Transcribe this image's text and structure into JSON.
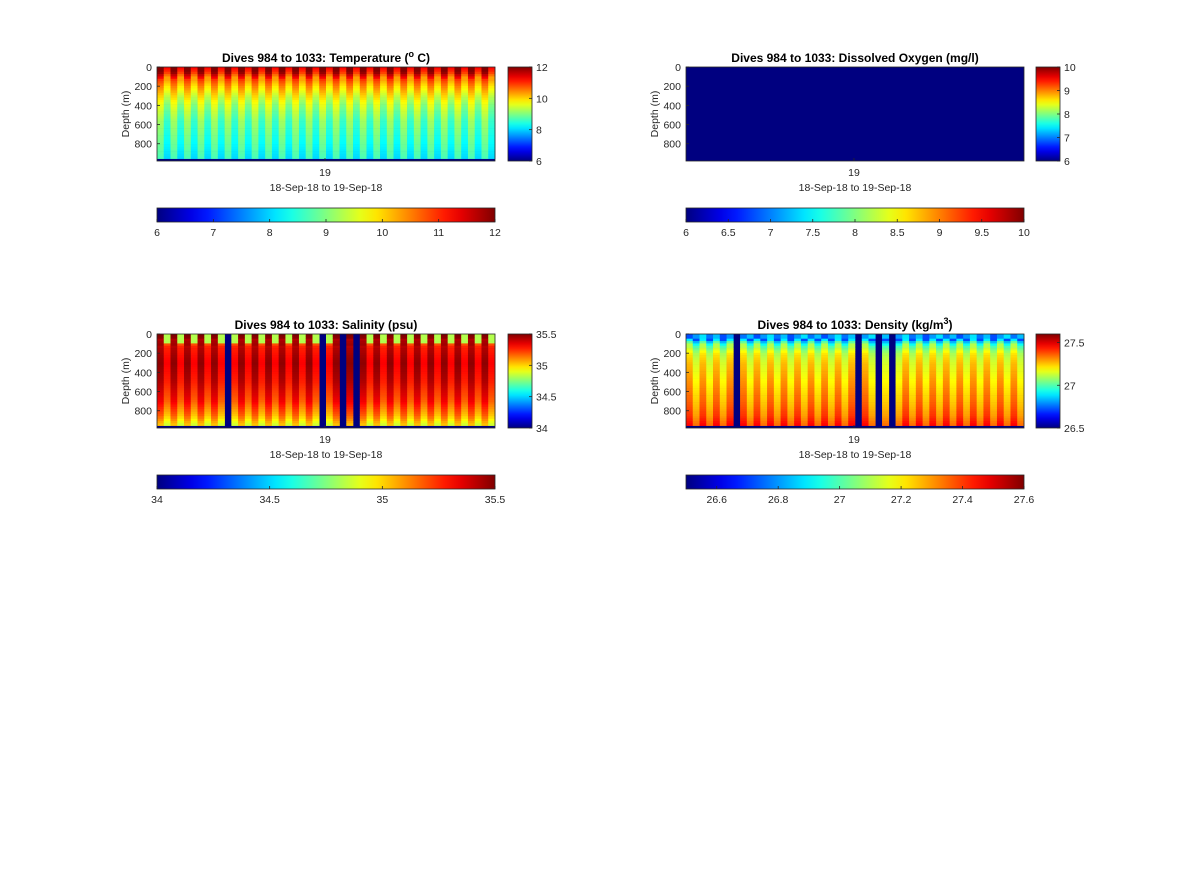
{
  "figure": {
    "colormap": "jet",
    "colors": {
      "background": "#ffffff",
      "missing_data": "#000080",
      "axes": "#262626"
    }
  },
  "chart_data": [
    {
      "type": "heatmap",
      "title": "Dives 984 to 1033: Temperature (",
      "title_sup": "o",
      "title_suffix": " C)",
      "ylabel": "Depth (m)",
      "xlabel": "18-Sep-18 to 19-Sep-18",
      "x_tick_labels": [
        "19"
      ],
      "y_ticks": [
        0,
        200,
        400,
        600,
        800
      ],
      "y_tick_labels": [
        "0",
        "200",
        "400",
        "600",
        "800"
      ],
      "ylim": [
        0,
        980
      ],
      "y_reversed": true,
      "dives": [
        984,
        1033
      ],
      "clim": [
        6,
        12
      ],
      "colorbar_ticks": [
        6,
        8,
        10,
        12
      ],
      "colorbar_tick_labels": [
        "6",
        "8",
        "10",
        "12"
      ],
      "h_colorbar_ticks": [
        6,
        7,
        8,
        9,
        10,
        11,
        12
      ],
      "h_colorbar_tick_labels": [
        "6",
        "7",
        "8",
        "9",
        "10",
        "11",
        "12"
      ],
      "profile": [
        [
          0,
          11.8
        ],
        [
          50,
          11.5
        ],
        [
          120,
          10.7
        ],
        [
          200,
          10.2
        ],
        [
          300,
          9.7
        ],
        [
          400,
          9.3
        ],
        [
          550,
          8.9
        ],
        [
          700,
          8.7
        ],
        [
          850,
          8.5
        ],
        [
          980,
          8.3
        ]
      ],
      "gap_dives": []
    },
    {
      "type": "heatmap",
      "title": "Dives 984 to 1033: Dissolved Oxygen (mg/l)",
      "title_sup": "",
      "title_suffix": "",
      "ylabel": "Depth (m)",
      "xlabel": "18-Sep-18 to 19-Sep-18",
      "x_tick_labels": [
        "19"
      ],
      "y_ticks": [
        0,
        200,
        400,
        600,
        800
      ],
      "y_tick_labels": [
        "0",
        "200",
        "400",
        "600",
        "800"
      ],
      "ylim": [
        0,
        980
      ],
      "y_reversed": true,
      "dives": [
        984,
        1033
      ],
      "clim": [
        6,
        10
      ],
      "colorbar_ticks": [
        6,
        7,
        8,
        9,
        10
      ],
      "colorbar_tick_labels": [
        "6",
        "7",
        "8",
        "9",
        "10"
      ],
      "h_colorbar_ticks": [
        6,
        6.5,
        7,
        7.5,
        8,
        8.5,
        9,
        9.5,
        10
      ],
      "h_colorbar_tick_labels": [
        "6",
        "6.5",
        "7",
        "7.5",
        "8",
        "8.5",
        "9",
        "9.5",
        "10"
      ],
      "profile": [],
      "all_missing": true,
      "gap_dives": []
    },
    {
      "type": "heatmap",
      "title": "Dives 984 to 1033: Salinity (psu)",
      "title_sup": "",
      "title_suffix": "",
      "ylabel": "Depth (m)",
      "xlabel": "18-Sep-18 to 19-Sep-18",
      "x_tick_labels": [
        "19"
      ],
      "y_ticks": [
        0,
        200,
        400,
        600,
        800
      ],
      "y_tick_labels": [
        "0",
        "200",
        "400",
        "600",
        "800"
      ],
      "ylim": [
        0,
        980
      ],
      "y_reversed": true,
      "dives": [
        984,
        1033
      ],
      "clim": [
        34,
        35.5
      ],
      "colorbar_ticks": [
        34,
        34.5,
        35,
        35.5
      ],
      "colorbar_tick_labels": [
        "34",
        "34.5",
        "35",
        "35.5"
      ],
      "h_colorbar_ticks": [
        34,
        34.5,
        35,
        35.5
      ],
      "h_colorbar_tick_labels": [
        "34",
        "34.5",
        "35",
        "35.5"
      ],
      "profile": [
        [
          0,
          35.45
        ],
        [
          60,
          35.3
        ],
        [
          150,
          35.35
        ],
        [
          300,
          35.4
        ],
        [
          500,
          35.35
        ],
        [
          700,
          35.25
        ],
        [
          850,
          35.1
        ],
        [
          940,
          34.95
        ]
      ],
      "gap_dives": [
        994,
        1008,
        1011,
        1013
      ]
    },
    {
      "type": "heatmap",
      "title": "Dives 984 to 1033: Density (kg/m",
      "title_sup": "3",
      "title_suffix": ")",
      "ylabel": "Depth (m)",
      "xlabel": "18-Sep-18 to 19-Sep-18",
      "x_tick_labels": [
        "19"
      ],
      "y_ticks": [
        0,
        200,
        400,
        600,
        800
      ],
      "y_tick_labels": [
        "0",
        "200",
        "400",
        "600",
        "800"
      ],
      "ylim": [
        0,
        980
      ],
      "y_reversed": true,
      "dives": [
        984,
        1033
      ],
      "clim": [
        26.5,
        27.6
      ],
      "colorbar_ticks": [
        26.5,
        27,
        27.5
      ],
      "colorbar_tick_labels": [
        "26.5",
        "27",
        "27.5"
      ],
      "h_colorbar_ticks": [
        26.6,
        26.8,
        27,
        27.2,
        27.4,
        27.6
      ],
      "h_colorbar_tick_labels": [
        "26.6",
        "26.8",
        "27",
        "27.2",
        "27.4",
        "27.6"
      ],
      "hbar_clim": [
        26.5,
        27.6
      ],
      "profile": [
        [
          0,
          26.7
        ],
        [
          50,
          26.75
        ],
        [
          100,
          27.0
        ],
        [
          200,
          27.15
        ],
        [
          300,
          27.2
        ],
        [
          500,
          27.25
        ],
        [
          700,
          27.3
        ],
        [
          850,
          27.35
        ],
        [
          940,
          27.4
        ]
      ],
      "gap_dives": [
        991,
        1009,
        1012,
        1014
      ]
    }
  ]
}
